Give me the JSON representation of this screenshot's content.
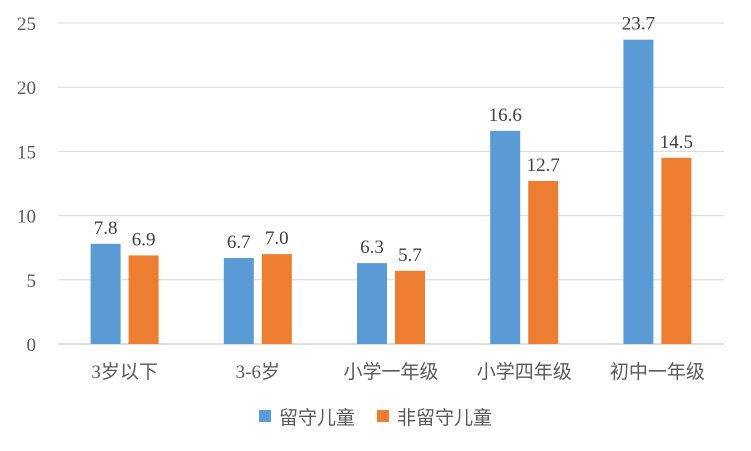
{
  "colors": {
    "left_behind": "#5b9bd5",
    "non_left_behind": "#ed7d31",
    "grid": "#d9d9d9",
    "axis": "#bfbfbf",
    "text": "#595959"
  },
  "chart_data": {
    "type": "bar",
    "categories": [
      "3岁以下",
      "3-6岁",
      "小学一年级",
      "小学四年级",
      "初中一年级"
    ],
    "series": [
      {
        "name": "留守儿童",
        "values": [
          7.8,
          6.7,
          6.3,
          16.6,
          23.7
        ]
      },
      {
        "name": "非留守儿童",
        "values": [
          6.9,
          7.0,
          5.7,
          12.7,
          14.5
        ]
      }
    ],
    "data_labels": [
      [
        "7.8",
        "6.7",
        "6.3",
        "16.6",
        "23.7"
      ],
      [
        "6.9",
        "7.0",
        "5.7",
        "12.7",
        "14.5"
      ]
    ],
    "yticks": [
      "0",
      "5",
      "10",
      "15",
      "20",
      "25"
    ],
    "ylim": [
      0,
      25
    ],
    "grid": true,
    "legend_position": "bottom",
    "title": "",
    "xlabel": "",
    "ylabel": ""
  }
}
